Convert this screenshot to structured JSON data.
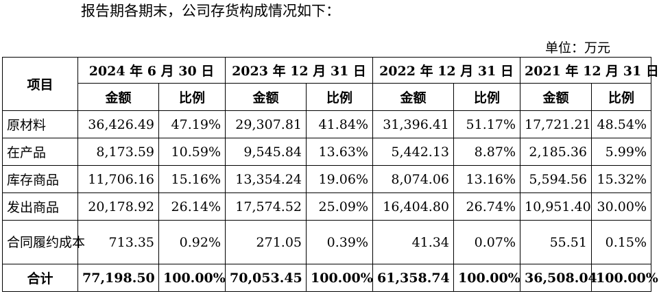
{
  "intro_text": "报告期各期末，公司存货构成情况如下：",
  "unit_text": "单位：万元",
  "table": {
    "item_header": "项目",
    "periods": [
      "2024 年 6 月 30 日",
      "2023 年 12 月 31 日",
      "2022 年 12 月 31 日",
      "2021 年 12 月 31 日"
    ],
    "amount_header": "金额",
    "ratio_header": "比例",
    "rows": [
      {
        "label": "原材料",
        "cells": [
          "36,426.49",
          "47.19%",
          "29,307.81",
          "41.84%",
          "31,396.41",
          "51.17%",
          "17,721.21",
          "48.54%"
        ]
      },
      {
        "label": "在产品",
        "cells": [
          "8,173.59",
          "10.59%",
          "9,545.84",
          "13.63%",
          "5,442.13",
          "8.87%",
          "2,185.36",
          "5.99%"
        ]
      },
      {
        "label": "库存商品",
        "cells": [
          "11,706.16",
          "15.16%",
          "13,354.24",
          "19.06%",
          "8,074.06",
          "13.16%",
          "5,594.56",
          "15.32%"
        ]
      },
      {
        "label": "发出商品",
        "cells": [
          "20,178.92",
          "26.14%",
          "17,574.52",
          "25.09%",
          "16,404.80",
          "26.74%",
          "10,951.40",
          "30.00%"
        ]
      },
      {
        "label": "合同履约成本",
        "cells": [
          "713.35",
          "0.92%",
          "271.05",
          "0.39%",
          "41.34",
          "0.07%",
          "55.51",
          "0.15%"
        ]
      }
    ],
    "total": {
      "label": "合计",
      "cells": [
        "77,198.50",
        "100.00%",
        "70,053.45",
        "100.00%",
        "61,358.74",
        "100.00%",
        "36,508.04",
        "100.00%"
      ]
    }
  }
}
